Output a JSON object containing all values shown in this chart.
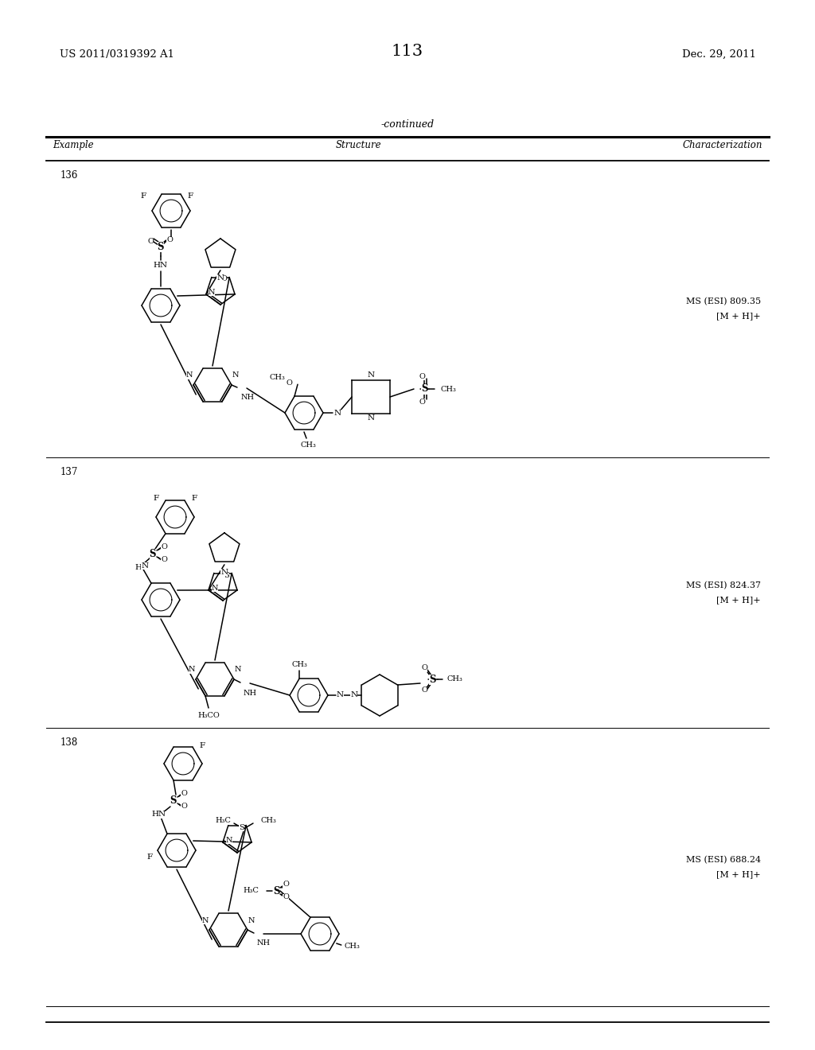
{
  "page_number": "113",
  "patent_number": "US 2011/0319392 A1",
  "patent_date": "Dec. 29, 2011",
  "continued_label": "-continued",
  "col_example": "Example",
  "col_structure": "Structure",
  "col_char": "Characterization",
  "rows": [
    {
      "example": "136",
      "char1": "MS (ESI) 809.35",
      "char2": "[M + H]+"
    },
    {
      "example": "137",
      "char1": "MS (ESI) 824.37",
      "char2": "[M + H]+"
    },
    {
      "example": "138",
      "char1": "MS (ESI) 688.24",
      "char2": "[M + H]+"
    }
  ],
  "bg": "#ffffff"
}
